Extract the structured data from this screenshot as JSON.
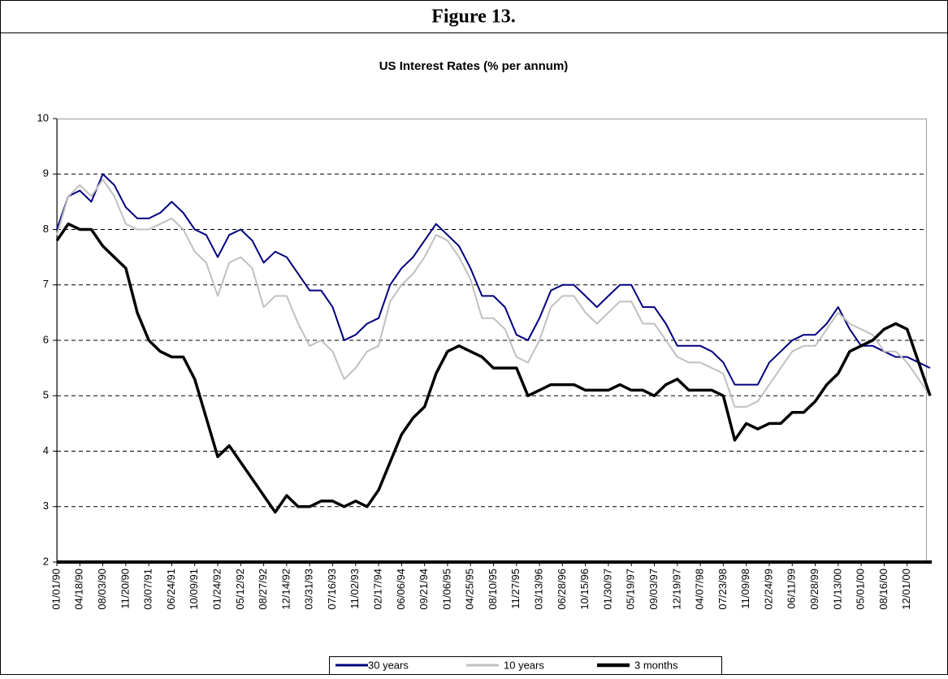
{
  "figure_label": "Figure 13.",
  "chart_data": {
    "type": "line",
    "title": "US Interest Rates (% per annum)",
    "categories": [
      "01/01/90",
      null,
      "04/18/90",
      null,
      "08/03/90",
      null,
      "11/20/90",
      null,
      "03/07/91",
      null,
      "06/24/91",
      null,
      "10/09/91",
      null,
      "01/24/92",
      null,
      "05/12/92",
      null,
      "08/27/92",
      null,
      "12/14/92",
      null,
      "03/31/93",
      null,
      "07/16/93",
      null,
      "11/02/93",
      null,
      "02/17/94",
      null,
      "06/06/94",
      null,
      "09/21/94",
      null,
      "01/06/95",
      null,
      "04/25/95",
      null,
      "08/10/95",
      null,
      "11/27/95",
      null,
      "03/13/96",
      null,
      "06/28/96",
      null,
      "10/15/96",
      null,
      "01/30/97",
      null,
      "05/19/97",
      null,
      "09/03/97",
      null,
      "12/19/97",
      null,
      "04/07/98",
      null,
      "07/23/98",
      null,
      "11/09/98",
      null,
      "02/24/99",
      null,
      "06/11/99",
      null,
      "09/28/99",
      null,
      "01/13/00",
      null,
      "05/01/00",
      null,
      "08/16/00",
      null,
      "12/01/00",
      null,
      null
    ],
    "series": [
      {
        "name": "30 years",
        "color": "#000080",
        "width": 2,
        "values": [
          8.0,
          8.6,
          8.7,
          8.5,
          9.0,
          8.8,
          8.4,
          8.2,
          8.2,
          8.3,
          8.5,
          8.3,
          8.0,
          7.9,
          7.5,
          7.9,
          8.0,
          7.8,
          7.4,
          7.6,
          7.5,
          7.2,
          6.9,
          6.9,
          6.6,
          6.0,
          6.1,
          6.3,
          6.4,
          7.0,
          7.3,
          7.5,
          7.8,
          8.1,
          7.9,
          7.7,
          7.3,
          6.8,
          6.8,
          6.6,
          6.1,
          6.0,
          6.4,
          6.9,
          7.0,
          7.0,
          6.8,
          6.6,
          6.8,
          7.0,
          7.0,
          6.6,
          6.6,
          6.3,
          5.9,
          5.9,
          5.9,
          5.8,
          5.6,
          5.2,
          5.2,
          5.2,
          5.6,
          5.8,
          6.0,
          6.1,
          6.1,
          6.3,
          6.6,
          6.2,
          5.9,
          5.9,
          5.8,
          5.7,
          5.7,
          5.6,
          5.5
        ]
      },
      {
        "name": "10 years",
        "color": "#c0c0c0",
        "width": 2,
        "values": [
          7.9,
          8.6,
          8.8,
          8.6,
          8.9,
          8.6,
          8.1,
          8.0,
          8.0,
          8.1,
          8.2,
          8.0,
          7.6,
          7.4,
          6.8,
          7.4,
          7.5,
          7.3,
          6.6,
          6.8,
          6.8,
          6.3,
          5.9,
          6.0,
          5.8,
          5.3,
          5.5,
          5.8,
          5.9,
          6.7,
          7.0,
          7.2,
          7.5,
          7.9,
          7.8,
          7.5,
          7.1,
          6.4,
          6.4,
          6.2,
          5.7,
          5.6,
          6.0,
          6.6,
          6.8,
          6.8,
          6.5,
          6.3,
          6.5,
          6.7,
          6.7,
          6.3,
          6.3,
          6.0,
          5.7,
          5.6,
          5.6,
          5.5,
          5.4,
          4.8,
          4.8,
          4.9,
          5.2,
          5.5,
          5.8,
          5.9,
          5.9,
          6.2,
          6.5,
          6.3,
          6.2,
          6.1,
          5.8,
          5.8,
          5.6,
          5.3,
          5.0
        ]
      },
      {
        "name": "3 months",
        "color": "#000000",
        "width": 3.5,
        "values": [
          7.8,
          8.1,
          8.0,
          8.0,
          7.7,
          7.5,
          7.3,
          6.5,
          6.0,
          5.8,
          5.7,
          5.7,
          5.3,
          4.6,
          3.9,
          4.1,
          3.8,
          3.5,
          3.2,
          2.9,
          3.2,
          3.0,
          3.0,
          3.1,
          3.1,
          3.0,
          3.1,
          3.0,
          3.3,
          3.8,
          4.3,
          4.6,
          4.8,
          5.4,
          5.8,
          5.9,
          5.8,
          5.7,
          5.5,
          5.5,
          5.5,
          5.0,
          5.1,
          5.2,
          5.2,
          5.2,
          5.1,
          5.1,
          5.1,
          5.2,
          5.1,
          5.1,
          5.0,
          5.2,
          5.3,
          5.1,
          5.1,
          5.1,
          5.0,
          4.2,
          4.5,
          4.4,
          4.5,
          4.5,
          4.7,
          4.7,
          4.9,
          5.2,
          5.4,
          5.8,
          5.9,
          6.0,
          6.2,
          6.3,
          6.2,
          5.6,
          5.0
        ]
      }
    ],
    "ylim": [
      2,
      10
    ],
    "yticks": [
      2,
      3,
      4,
      5,
      6,
      7,
      8,
      9,
      10
    ],
    "grid": true,
    "legend": "bottom"
  }
}
